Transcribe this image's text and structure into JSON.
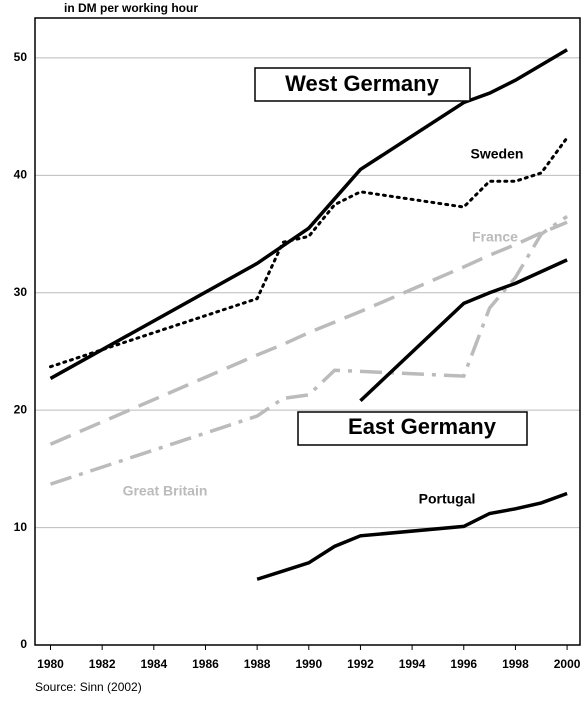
{
  "chart_data": {
    "type": "line",
    "title": "in DM per working hour",
    "source": "Source: Sinn (2002)",
    "x": [
      1980,
      1988,
      1989,
      1990,
      1991,
      1992,
      1996,
      1997,
      1998,
      1999,
      2000
    ],
    "series": [
      {
        "name": "West Germany",
        "color": "#000000",
        "linestyle": "solid",
        "values": [
          22.7,
          32.5,
          34,
          35.5,
          38,
          40.5,
          46.2,
          47,
          48.1,
          49.4,
          50.7
        ]
      },
      {
        "name": "Sweden",
        "color": "#000000",
        "linestyle": "dotted",
        "values": [
          23.7,
          29.5,
          34.3,
          34.8,
          37.5,
          38.6,
          37.3,
          39.5,
          39.5,
          40.2,
          43.2
        ]
      },
      {
        "name": "France",
        "color": "#bbbbbb",
        "linestyle": "dashed",
        "values": [
          17.1,
          24.7,
          25.6,
          26.6,
          27.5,
          28.4,
          32.2,
          33.2,
          34.1,
          35.1,
          36
        ]
      },
      {
        "name": "Great Britain",
        "color": "#bbbbbb",
        "linestyle": "dashdot",
        "values": [
          13.7,
          19.5,
          21,
          21.3,
          23.4,
          23.3,
          22.9,
          28.7,
          31.3,
          35,
          36.5
        ]
      },
      {
        "name": "East Germany",
        "color": "#000000",
        "linestyle": "solid",
        "values": [
          null,
          null,
          null,
          null,
          null,
          20.8,
          29.1,
          30,
          30.8,
          31.8,
          32.8
        ]
      },
      {
        "name": "Portugal",
        "color": "#000000",
        "linestyle": "solid",
        "values": [
          null,
          5.6,
          6.3,
          7,
          8.4,
          9.3,
          10.1,
          11.2,
          11.6,
          12.1,
          12.9
        ]
      }
    ],
    "xlim": [
      1979.4,
      2000.5
    ],
    "xticks": [
      1980,
      1982,
      1984,
      1986,
      1988,
      1990,
      1992,
      1994,
      1996,
      1998,
      2000
    ],
    "ylim": [
      0,
      53.4
    ],
    "yticks": [
      0,
      10,
      20,
      30,
      40,
      50
    ],
    "grid": true
  }
}
